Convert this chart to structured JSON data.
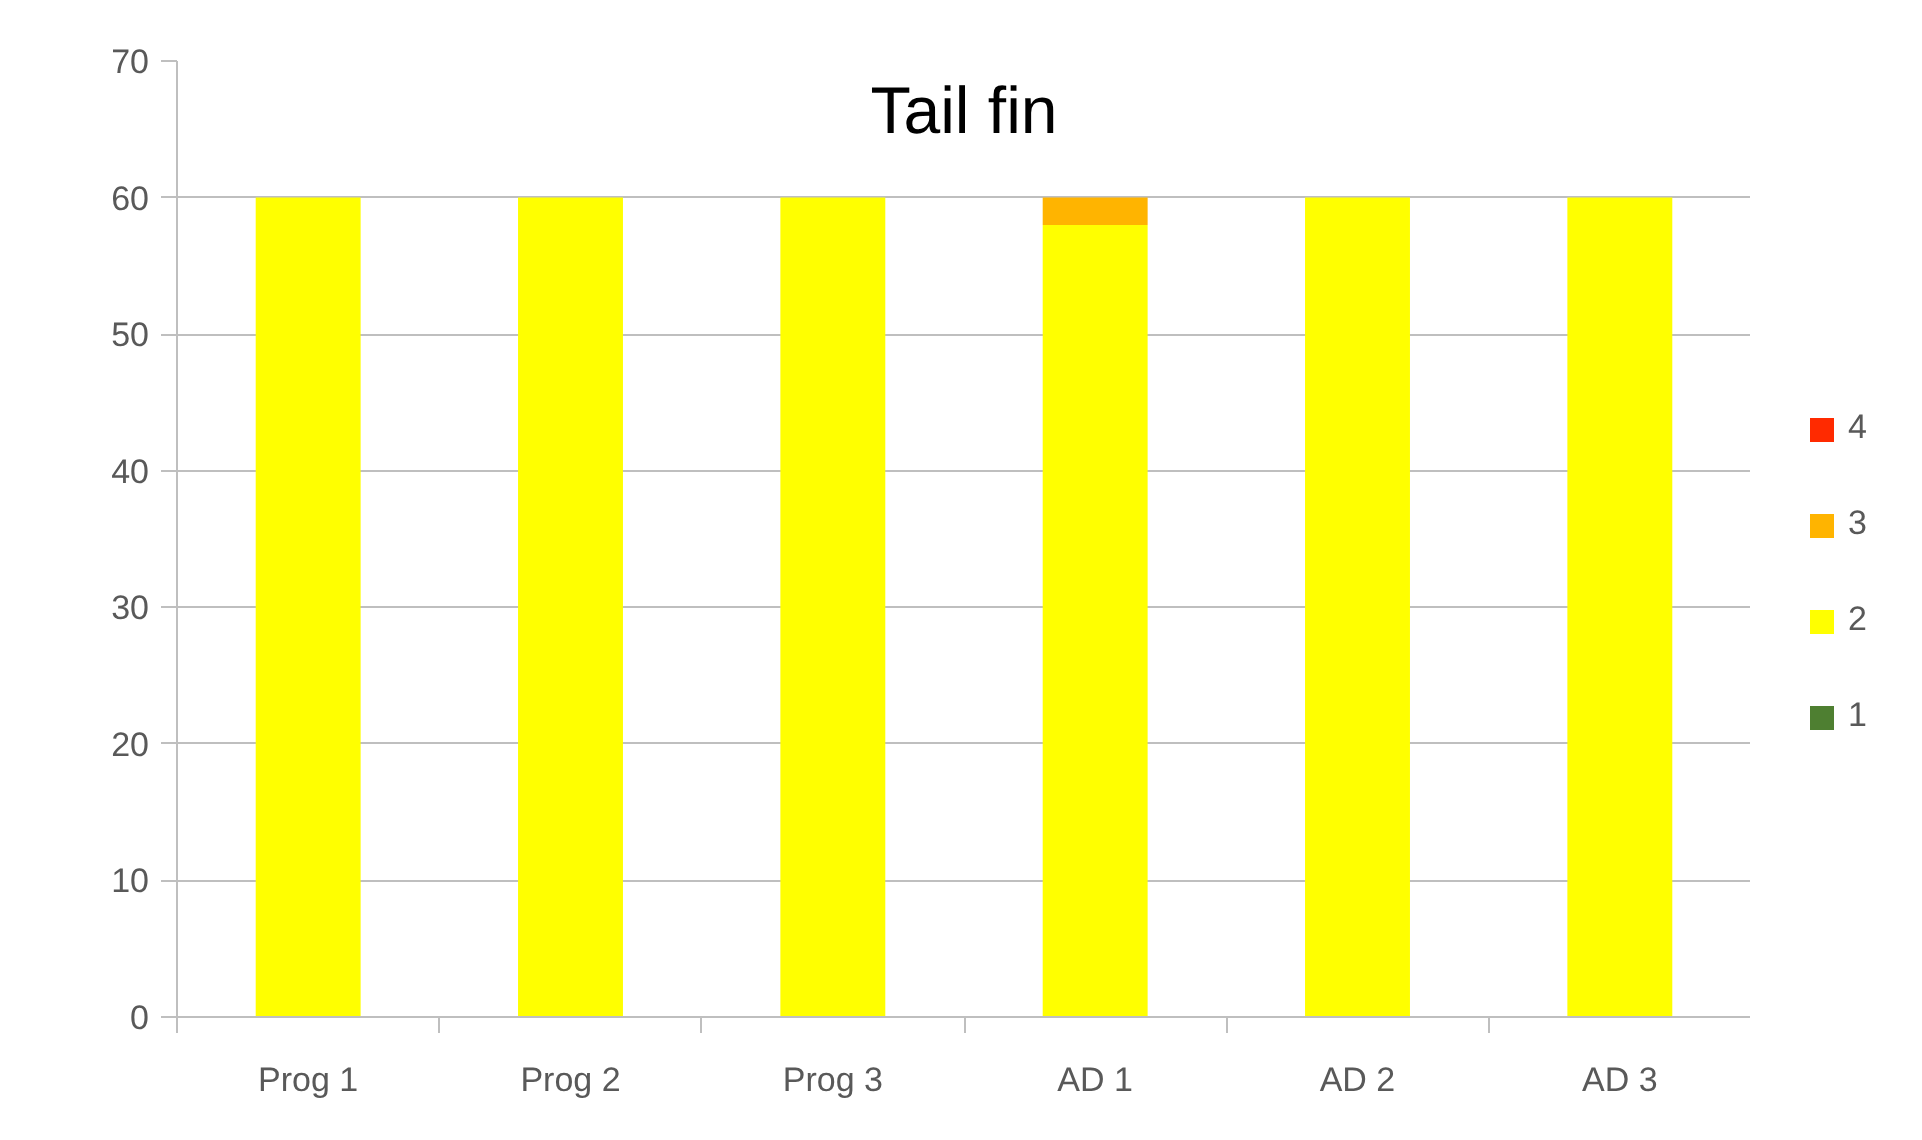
{
  "chart_data": {
    "type": "bar",
    "stacked": true,
    "title": "Tail fin",
    "categories": [
      "Prog 1",
      "Prog 2",
      "Prog 3",
      "AD 1",
      "AD 2",
      "AD 3"
    ],
    "series": [
      {
        "name": "1",
        "color": "#4e7f31",
        "values": [
          0,
          0,
          0,
          0,
          0,
          0
        ]
      },
      {
        "name": "2",
        "color": "#ffff00",
        "values": [
          60,
          60,
          60,
          58,
          60,
          60
        ]
      },
      {
        "name": "3",
        "color": "#ffb400",
        "values": [
          0,
          0,
          0,
          2,
          0,
          0
        ]
      },
      {
        "name": "4",
        "color": "#ff2a00",
        "values": [
          0,
          0,
          0,
          0,
          0,
          0
        ]
      }
    ],
    "ylim": [
      0,
      70
    ],
    "yticks": [
      0,
      10,
      20,
      30,
      40,
      50,
      60,
      70
    ],
    "grid": "y",
    "legend": "right"
  }
}
